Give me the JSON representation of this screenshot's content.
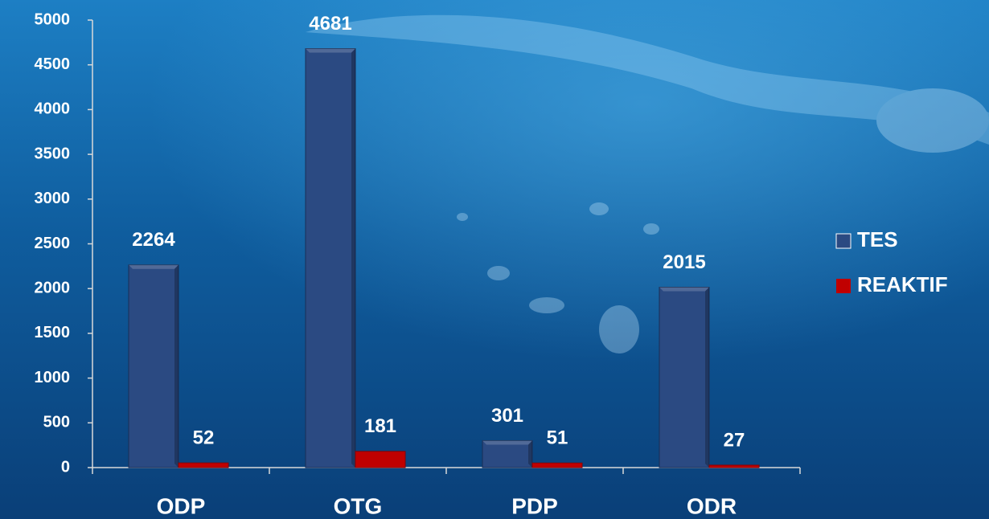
{
  "chart_data": {
    "type": "bar",
    "categories": [
      "ODP",
      "OTG",
      "PDP",
      "ODR"
    ],
    "series": [
      {
        "name": "TES",
        "color": "#2b4a82",
        "values": [
          2264,
          4681,
          301,
          2015
        ]
      },
      {
        "name": "REAKTIF",
        "color": "#c00000",
        "values": [
          52,
          181,
          51,
          27
        ]
      }
    ],
    "ylim": [
      0,
      5000
    ],
    "yticks": [
      0,
      500,
      1000,
      1500,
      2000,
      2500,
      3000,
      3500,
      4000,
      4500,
      5000
    ],
    "grid": false,
    "legend": "right"
  }
}
